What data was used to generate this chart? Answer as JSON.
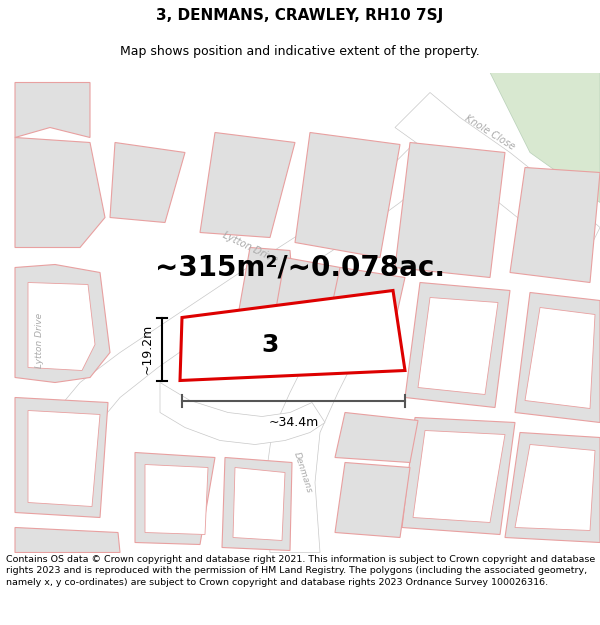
{
  "title_line1": "3, DENMANS, CRAWLEY, RH10 7SJ",
  "title_line2": "Map shows position and indicative extent of the property.",
  "area_text": "~315m²/~0.078ac.",
  "plot_number": "3",
  "dim_width": "~34.4m",
  "dim_height": "~19.2m",
  "footer_text": "Contains OS data © Crown copyright and database right 2021. This information is subject to Crown copyright and database rights 2023 and is reproduced with the permission of HM Land Registry. The polygons (including the associated geometry, namely x, y co-ordinates) are subject to Crown copyright and database rights 2023 Ordnance Survey 100026316.",
  "map_bg": "#ffffff",
  "block_fill": "#e0e0e0",
  "block_edge": "#e8a0a0",
  "road_label_color": "#aaaaaa",
  "plot_fill": "#ffffff",
  "plot_edge": "#dd0000",
  "green_fill": "#d8e8d0",
  "title_fontsize": 11,
  "subtitle_fontsize": 9,
  "area_fontsize": 20,
  "footer_fontsize": 6.8,
  "dim_fontsize": 9
}
